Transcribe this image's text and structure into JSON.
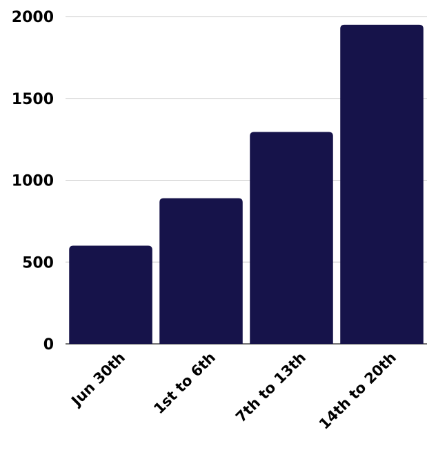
{
  "chart_data": {
    "type": "bar",
    "categories": [
      "Jun 30th",
      "1st to 6th",
      "7th to 13th",
      "14th to 20th"
    ],
    "values": [
      600,
      890,
      1295,
      1950
    ],
    "yticks": [
      "0",
      "500",
      "1000",
      "1500",
      "2000"
    ],
    "ylim": [
      0,
      2000
    ],
    "grid": true,
    "legend": "none",
    "colors": {
      "bar": "#16134a",
      "grid": "#c8c8c8",
      "text": "#000000"
    }
  }
}
